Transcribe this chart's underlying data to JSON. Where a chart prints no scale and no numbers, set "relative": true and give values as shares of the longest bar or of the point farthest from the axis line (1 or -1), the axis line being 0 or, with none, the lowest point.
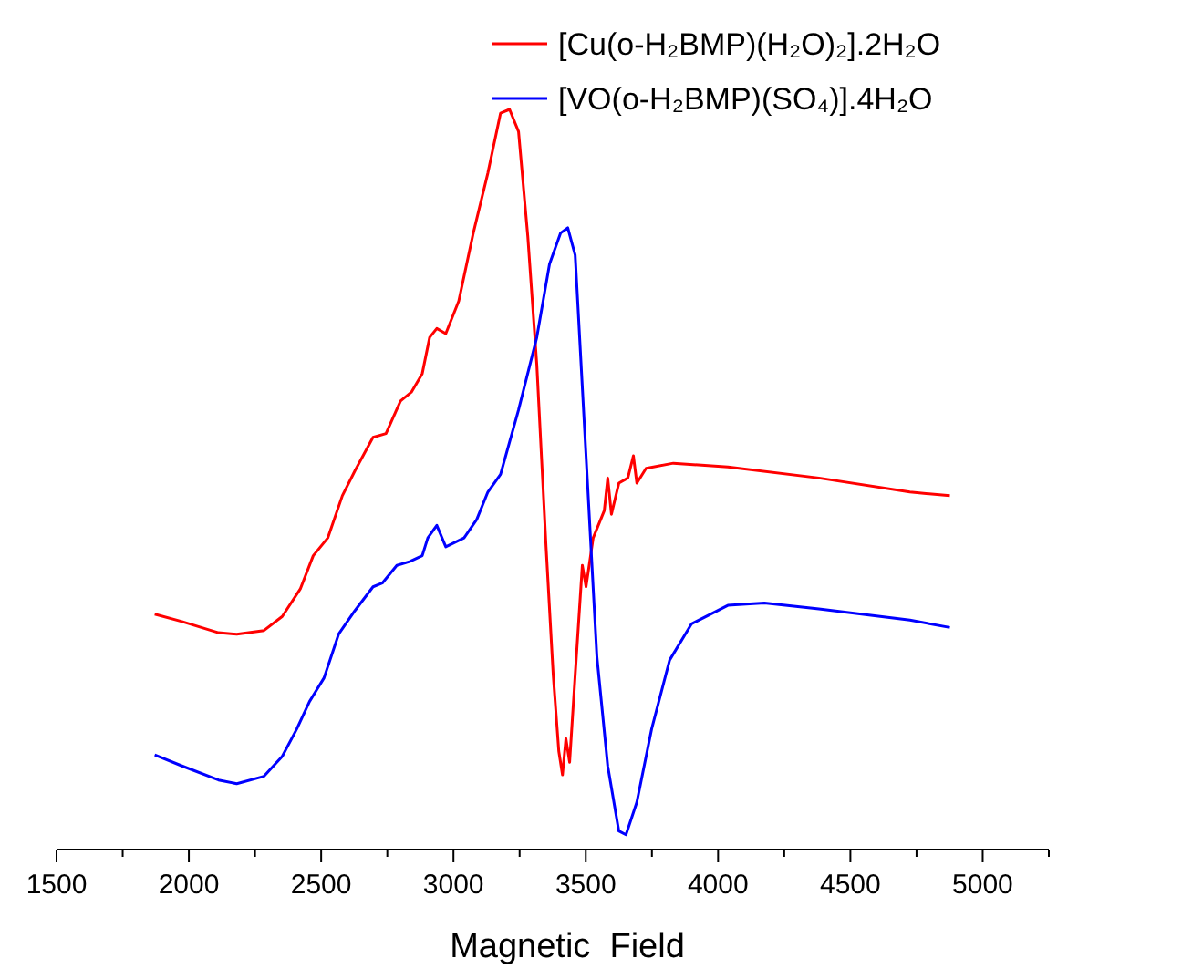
{
  "chart_data": {
    "type": "line",
    "xlabel": "Magnetic  Field",
    "relative": true,
    "legend": "top right",
    "xlim": [
      1500,
      5250
    ],
    "xticks": [
      1500,
      {
        "value": 1750,
        "label": null
      },
      2000,
      {
        "value": 2250,
        "label": null
      },
      2500,
      {
        "value": 2750,
        "label": null
      },
      3000,
      {
        "value": 3250,
        "label": null
      },
      3500,
      {
        "value": 3750,
        "label": null
      },
      4000,
      {
        "value": 4250,
        "label": null
      },
      4500,
      {
        "value": 4750,
        "label": null
      },
      5000,
      {
        "value": 5250,
        "label": null
      }
    ],
    "series": [
      {
        "name": "[Cu(o-H₂BMP)(H₂O)₂].2H₂O",
        "color": "#ff0000",
        "x": [
          1871,
          1974,
          2112,
          2181,
          2284,
          2353,
          2421,
          2470,
          2525,
          2580,
          2628,
          2696,
          2745,
          2800,
          2841,
          2882,
          2910,
          2937,
          2971,
          3020,
          3075,
          3130,
          3178,
          3212,
          3246,
          3281,
          3315,
          3350,
          3377,
          3398,
          3412,
          3425,
          3439,
          3460,
          3487,
          3501,
          3528,
          3570,
          3583,
          3597,
          3625,
          3659,
          3680,
          3693,
          3728,
          3831,
          4037,
          4381,
          4725,
          4876
        ],
        "values": [
          0.318,
          0.308,
          0.293,
          0.291,
          0.296,
          0.315,
          0.352,
          0.397,
          0.421,
          0.478,
          0.512,
          0.557,
          0.562,
          0.606,
          0.618,
          0.643,
          0.692,
          0.704,
          0.697,
          0.741,
          0.833,
          0.914,
          0.995,
          1,
          0.97,
          0.828,
          0.655,
          0.409,
          0.236,
          0.133,
          0.101,
          0.15,
          0.118,
          0.236,
          0.384,
          0.355,
          0.421,
          0.458,
          0.502,
          0.453,
          0.495,
          0.502,
          0.532,
          0.495,
          0.515,
          0.522,
          0.517,
          0.502,
          0.483,
          0.478
        ]
      },
      {
        "name": "[VO(o-H₂BMP)(SO₄)].4H₂O",
        "color": "#0000ff",
        "x": [
          1871,
          1974,
          2112,
          2181,
          2284,
          2353,
          2408,
          2456,
          2511,
          2566,
          2628,
          2696,
          2731,
          2786,
          2834,
          2882,
          2903,
          2937,
          2971,
          3040,
          3088,
          3130,
          3178,
          3246,
          3315,
          3363,
          3405,
          3432,
          3460,
          3501,
          3542,
          3583,
          3625,
          3652,
          3693,
          3749,
          3817,
          3900,
          4037,
          4175,
          4381,
          4725,
          4876
        ],
        "values": [
          0.128,
          0.113,
          0.094,
          0.089,
          0.099,
          0.126,
          0.163,
          0.2,
          0.232,
          0.291,
          0.323,
          0.355,
          0.36,
          0.384,
          0.389,
          0.397,
          0.421,
          0.438,
          0.409,
          0.421,
          0.446,
          0.483,
          0.507,
          0.594,
          0.692,
          0.791,
          0.833,
          0.84,
          0.803,
          0.532,
          0.261,
          0.113,
          0.025,
          0.02,
          0.064,
          0.163,
          0.256,
          0.305,
          0.33,
          0.333,
          0.325,
          0.31,
          0.3
        ]
      }
    ]
  }
}
